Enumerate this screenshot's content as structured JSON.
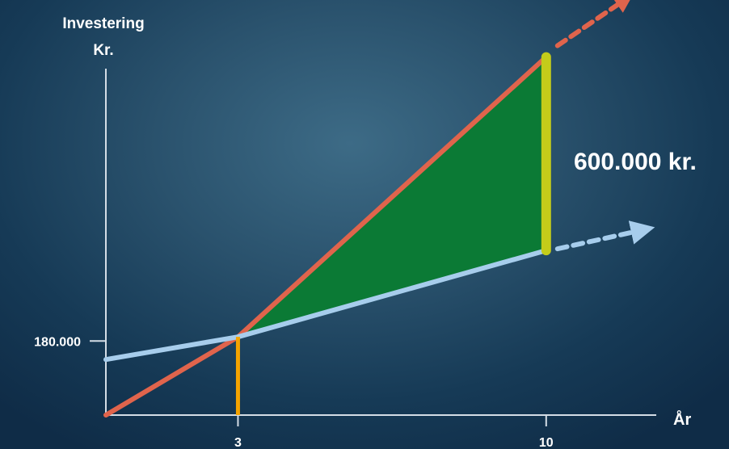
{
  "chart_data": {
    "type": "line",
    "ylabel_line1": "Investering",
    "ylabel_line2": "Kr.",
    "xlabel": "År",
    "x_ticks": [
      {
        "value": 3,
        "label": "3"
      },
      {
        "value": 10,
        "label": "10"
      }
    ],
    "y_ticks": [
      {
        "value": 180000,
        "label": "180.000"
      }
    ],
    "annotation": "600.000 kr.",
    "series": [
      {
        "color": "#e0644c",
        "points": [
          [
            0,
            0
          ],
          [
            3,
            190000
          ],
          [
            10,
            870000
          ]
        ],
        "continues": true
      },
      {
        "color": "#a7cdec",
        "points": [
          [
            0,
            135000
          ],
          [
            3,
            190000
          ],
          [
            10,
            400000
          ]
        ],
        "continues": true
      }
    ],
    "markers": [
      {
        "x": 3,
        "color": "#f5a400"
      },
      {
        "x": 10,
        "color": "#c4cc1a",
        "from": 400000,
        "to": 870000
      }
    ],
    "fill": {
      "color": "#0b7a35",
      "between_x": [
        3,
        10
      ]
    },
    "xlim": [
      0,
      12.5
    ],
    "ylim": [
      0,
      930000
    ]
  }
}
